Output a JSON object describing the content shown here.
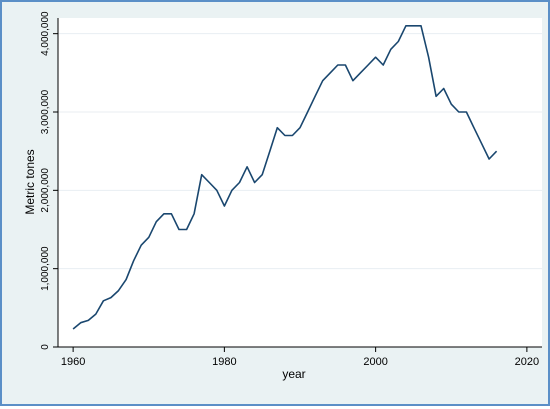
{
  "chart_data": {
    "type": "line",
    "title": "",
    "xlabel": "year",
    "ylabel": "Metric tones",
    "xlim": [
      1958,
      2022
    ],
    "ylim": [
      0,
      4200000
    ],
    "grid": true,
    "legend": "none",
    "x_ticks": [
      1960,
      1980,
      2000,
      2020
    ],
    "x_tick_labels": [
      "1960",
      "1980",
      "2000",
      "2020"
    ],
    "y_ticks": [
      0,
      1000000,
      2000000,
      3000000,
      4000000
    ],
    "y_tick_labels": [
      "0",
      "1,000,000",
      "2,000,000",
      "3,000,000",
      "4,000,000"
    ],
    "colors": {
      "frame_border": "#5b8fc7",
      "outer_background": "#eaf2f3",
      "plot_background": "#ffffff",
      "grid": "#e8eef2",
      "line": "#1a476f"
    },
    "series": [
      {
        "x": [
          1960,
          1961,
          1962,
          1963,
          1964,
          1965,
          1966,
          1967,
          1968,
          1969,
          1970,
          1971,
          1972,
          1973,
          1974,
          1975,
          1976,
          1977,
          1978,
          1979,
          1980,
          1981,
          1982,
          1983,
          1984,
          1985,
          1986,
          1987,
          1988,
          1989,
          1990,
          1991,
          1992,
          1993,
          1994,
          1995,
          1996,
          1997,
          1998,
          1999,
          2000,
          2001,
          2002,
          2003,
          2004,
          2005,
          2006,
          2007,
          2008,
          2009,
          2010,
          2011,
          2012,
          2013,
          2014,
          2015,
          2016
        ],
        "values": [
          230000,
          310000,
          340000,
          420000,
          590000,
          630000,
          720000,
          860000,
          1100000,
          1300000,
          1400000,
          1600000,
          1700000,
          1700000,
          1500000,
          1500000,
          1700000,
          2200000,
          2100000,
          2000000,
          1800000,
          2000000,
          2100000,
          2300000,
          2100000,
          2200000,
          2500000,
          2800000,
          2700000,
          2700000,
          2800000,
          3000000,
          3200000,
          3400000,
          3500000,
          3600000,
          3600000,
          3400000,
          3500000,
          3600000,
          3700000,
          3600000,
          3800000,
          3900000,
          4100000,
          4100000,
          4100000,
          3700000,
          3200000,
          3300000,
          3100000,
          3000000,
          3000000,
          2800000,
          2600000,
          2400000,
          2500000
        ]
      }
    ]
  }
}
